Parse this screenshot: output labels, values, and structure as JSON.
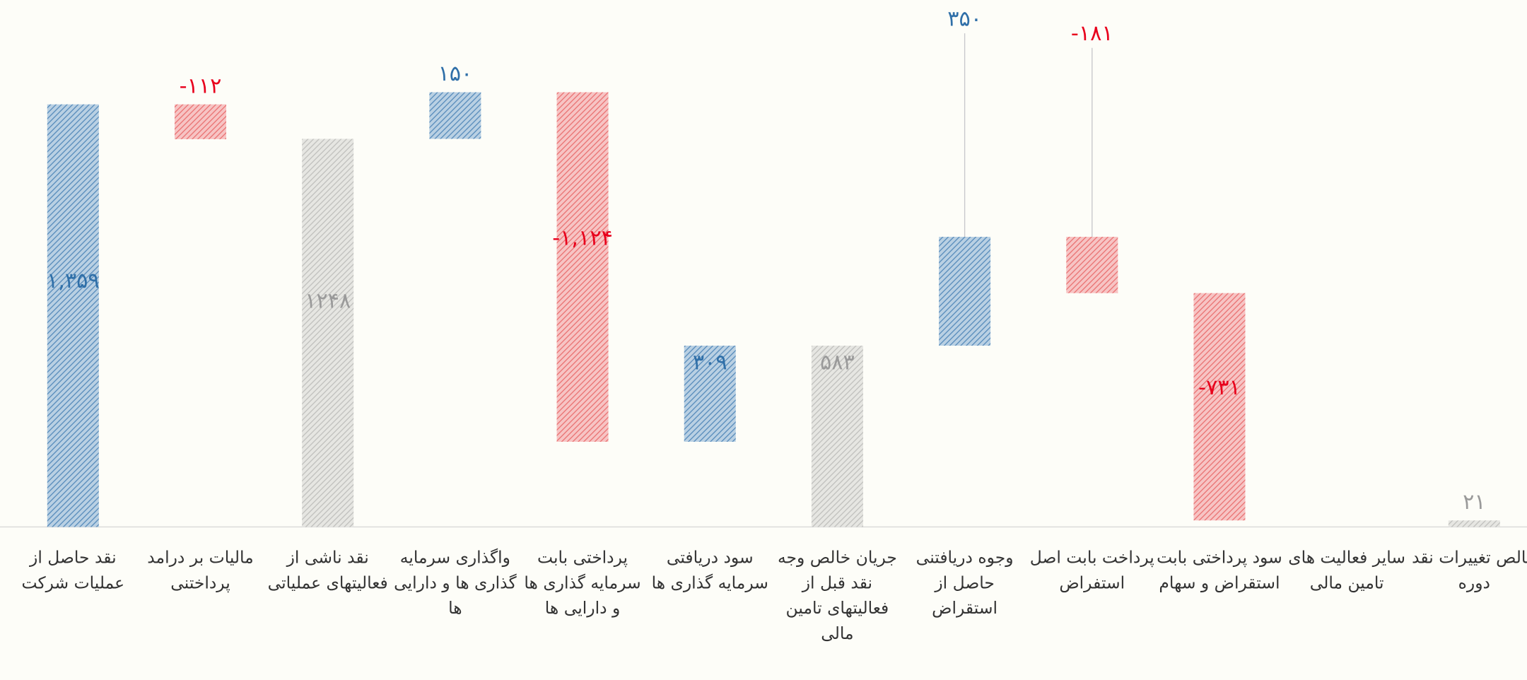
{
  "chart_data": {
    "type": "waterfall",
    "categories": [
      "نقد حاصل از عملیات شرکت",
      "مالیات بر درامد پرداختنی",
      "نقد  ناشی از فعالیتهای عملیاتی",
      "واگذاری سرمایه گذاری ها و دارایی ها",
      "پرداختی بابت سرمایه گذاری ها و دارایی ها",
      "سود دریافتی سرمایه گذاری ها",
      "جریان خالص وجه نقد قبل از فعالیتهای تامین مالی",
      "وجوه دریافتنی حاصل از استقراض",
      "پرداخت بابت اصل استفراض",
      "سود پرداختی بابت استقراض و سهام",
      "سایر فعالیت های تامین مالی",
      "خالص تغییرات نقد دوره"
    ],
    "values": [
      1359,
      -112,
      1248,
      150,
      -1124,
      309,
      583,
      350,
      -181,
      -731,
      0,
      21
    ],
    "value_labels": [
      "۱,۳۵۹",
      "-۱۱۲",
      "۱۲۴۸",
      "۱۵۰",
      "-۱,۱۲۴",
      "۳۰۹",
      "۵۸۳",
      "۳۵۰",
      "-۱۸۱",
      "-۷۳۱",
      null,
      "۲۱"
    ],
    "is_total": [
      false,
      false,
      true,
      false,
      false,
      false,
      true,
      false,
      false,
      false,
      false,
      true
    ],
    "colors": {
      "increase": "#7fa9cc",
      "decrease": "#f09a9a",
      "total": "#cfcfcf"
    },
    "label_colors": {
      "increase": "#2f6fa8",
      "decrease": "#e8001c",
      "total": "#9a9a9a"
    }
  }
}
